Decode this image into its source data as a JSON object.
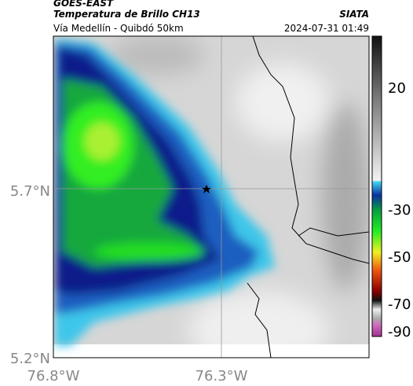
{
  "header": {
    "source": "GOES-EAST",
    "title": "Temperatura de Brillo CH13",
    "agency": "SIATA",
    "location": "Vía Medellín - Quibdó 50km",
    "timestamp": "2024-07-31 01:49"
  },
  "map": {
    "lat_labels": [
      "5.7°N",
      "5.2°N"
    ],
    "lon_labels": [
      "76.8°W",
      "76.3°W"
    ]
  },
  "colorbar": {
    "tick_labels": [
      "20",
      "-30",
      "-50",
      "-70",
      "-90"
    ]
  }
}
